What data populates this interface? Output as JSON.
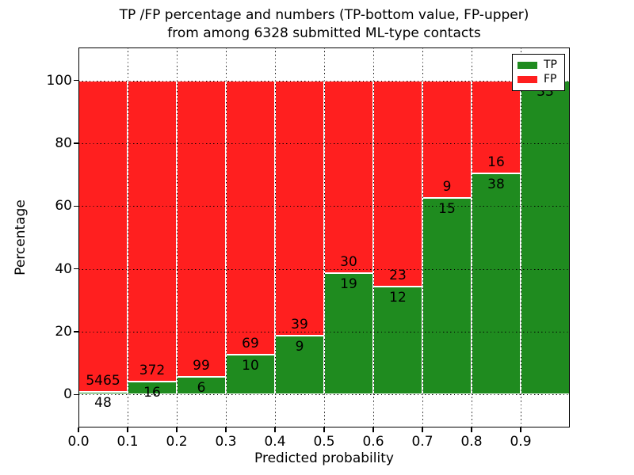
{
  "chart_data": {
    "type": "bar",
    "variant": "stacked-100-percent-histogram",
    "title_line1": "TP /FP percentage and numbers (TP-bottom value, FP-upper)",
    "title_line2": "from among 6328 submitted ML-type contacts",
    "xlabel": "Predicted probability",
    "ylabel": "Percentage",
    "total_contacts": 6328,
    "x_bin_edges": [
      0.0,
      0.1,
      0.2,
      0.3,
      0.4,
      0.5,
      0.6,
      0.7,
      0.8,
      0.9,
      1.0
    ],
    "xtick_labels": [
      "0.0",
      "0.1",
      "0.2",
      "0.3",
      "0.4",
      "0.5",
      "0.6",
      "0.7",
      "0.8",
      "0.9"
    ],
    "ytick_values": [
      0,
      20,
      40,
      60,
      80,
      100
    ],
    "xlim": [
      0.0,
      1.0
    ],
    "ylim": [
      -10.5,
      110.5
    ],
    "grid": "dotted",
    "series": [
      {
        "name": "TP",
        "color": "#1f8b1f",
        "counts": [
          48,
          16,
          6,
          10,
          9,
          19,
          12,
          15,
          38,
          33
        ]
      },
      {
        "name": "FP",
        "color": "#ff1f1f",
        "counts": [
          5465,
          372,
          99,
          69,
          39,
          30,
          23,
          9,
          16,
          0
        ]
      }
    ],
    "tp_percent_of_bin": [
      0.87,
      4.12,
      5.71,
      12.66,
      18.75,
      38.78,
      34.29,
      62.5,
      70.37,
      100.0
    ],
    "legend": {
      "position": "upper-right",
      "entries": [
        {
          "label": "TP",
          "color": "#1f8b1f"
        },
        {
          "label": "FP",
          "color": "#ff1f1f"
        }
      ]
    },
    "colors": {
      "tp": "#1f8b1f",
      "fp": "#ff1f1f",
      "grid": "#000000",
      "text": "#000000",
      "background": "#ffffff",
      "bar_edge": "#ffffff"
    }
  }
}
